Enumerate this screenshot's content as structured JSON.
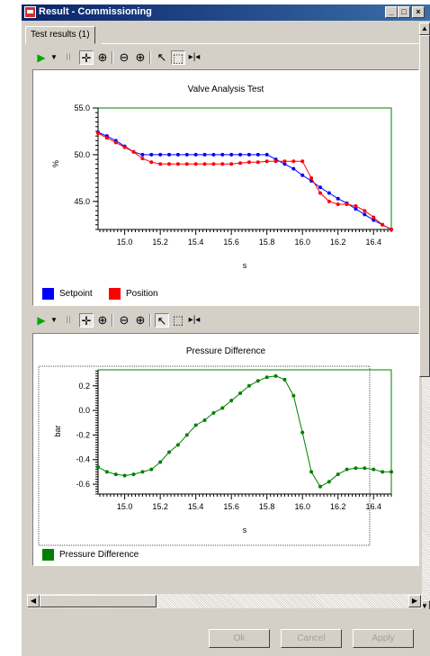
{
  "window": {
    "title": "Result - Commissioning"
  },
  "tabs": [
    {
      "label": "Test results (1)"
    }
  ],
  "toolbar_icons": [
    "play-icon",
    "dropdown-arrow-icon",
    "pause-icon",
    "pan-icon",
    "zoom-area-icon",
    "zoom-out-icon",
    "zoom-in-icon",
    "pointer-icon",
    "select-rect-icon",
    "fit-icon"
  ],
  "buttons": {
    "ok": "Ok",
    "cancel": "Cancel",
    "apply": "Apply"
  },
  "colors": {
    "setpoint": "#0000ff",
    "position": "#ff0000",
    "pressure": "#008000",
    "plot_border": "#008000"
  },
  "chart_data": [
    {
      "type": "line",
      "title": "Valve Analysis Test",
      "xlabel": "s",
      "ylabel": "%",
      "xlim": [
        14.85,
        16.5
      ],
      "ylim": [
        42.0,
        55.0
      ],
      "xticks": [
        "15.0",
        "15.2",
        "15.4",
        "15.6",
        "15.8",
        "16.0",
        "16.2",
        "16.4"
      ],
      "yticks": [
        "55.0",
        "50.0",
        "45.0"
      ],
      "grid": false,
      "legend": "bottom-left",
      "series": [
        {
          "name": "Setpoint",
          "color": "#0000ff",
          "x": [
            14.85,
            14.9,
            14.95,
            15.0,
            15.05,
            15.1,
            15.15,
            15.2,
            15.25,
            15.3,
            15.35,
            15.4,
            15.45,
            15.5,
            15.55,
            15.6,
            15.65,
            15.7,
            15.75,
            15.8,
            15.85,
            15.9,
            15.95,
            16.0,
            16.05,
            16.1,
            16.15,
            16.2,
            16.25,
            16.3,
            16.35,
            16.4,
            16.45,
            16.5
          ],
          "y": [
            52.4,
            52.0,
            51.5,
            50.9,
            50.3,
            50.0,
            50.0,
            50.0,
            50.0,
            50.0,
            50.0,
            50.0,
            50.0,
            50.0,
            50.0,
            50.0,
            50.0,
            50.0,
            50.0,
            50.0,
            49.5,
            49.0,
            48.5,
            47.8,
            47.2,
            46.5,
            45.9,
            45.3,
            44.8,
            44.2,
            43.6,
            43.0,
            42.5,
            42.0
          ]
        },
        {
          "name": "Position",
          "color": "#ff0000",
          "x": [
            14.85,
            14.9,
            14.95,
            15.0,
            15.05,
            15.1,
            15.15,
            15.2,
            15.25,
            15.3,
            15.35,
            15.4,
            15.45,
            15.5,
            15.55,
            15.6,
            15.65,
            15.7,
            15.75,
            15.8,
            15.85,
            15.9,
            15.95,
            16.0,
            16.05,
            16.1,
            16.15,
            16.2,
            16.25,
            16.3,
            16.35,
            16.4,
            16.45,
            16.5
          ],
          "y": [
            52.3,
            51.8,
            51.3,
            50.8,
            50.3,
            49.6,
            49.2,
            49.0,
            49.0,
            49.0,
            49.0,
            49.0,
            49.0,
            49.0,
            49.0,
            49.0,
            49.1,
            49.2,
            49.2,
            49.3,
            49.3,
            49.3,
            49.3,
            49.3,
            47.5,
            45.9,
            45.0,
            44.7,
            44.7,
            44.5,
            44.0,
            43.3,
            42.5,
            42.0
          ]
        }
      ]
    },
    {
      "type": "line",
      "title": "Pressure Difference",
      "xlabel": "s",
      "ylabel": "bar",
      "xlim": [
        14.85,
        16.5
      ],
      "ylim": [
        -0.68,
        0.33
      ],
      "xticks": [
        "15.0",
        "15.2",
        "15.4",
        "15.6",
        "15.8",
        "16.0",
        "16.2",
        "16.4"
      ],
      "yticks": [
        "0.2",
        "0.0",
        "-0.2",
        "-0.4",
        "-0.6"
      ],
      "grid": false,
      "legend": "bottom-left",
      "series": [
        {
          "name": "Pressure Difference",
          "color": "#008000",
          "x": [
            14.85,
            14.9,
            14.95,
            15.0,
            15.05,
            15.1,
            15.15,
            15.2,
            15.25,
            15.3,
            15.35,
            15.4,
            15.45,
            15.5,
            15.55,
            15.6,
            15.65,
            15.7,
            15.75,
            15.8,
            15.85,
            15.9,
            15.95,
            16.0,
            16.05,
            16.1,
            16.15,
            16.2,
            16.25,
            16.3,
            16.35,
            16.4,
            16.45,
            16.5
          ],
          "y": [
            -0.46,
            -0.5,
            -0.52,
            -0.53,
            -0.52,
            -0.5,
            -0.48,
            -0.42,
            -0.34,
            -0.28,
            -0.2,
            -0.12,
            -0.08,
            -0.02,
            0.02,
            0.08,
            0.14,
            0.2,
            0.24,
            0.27,
            0.28,
            0.25,
            0.12,
            -0.18,
            -0.5,
            -0.62,
            -0.58,
            -0.52,
            -0.48,
            -0.47,
            -0.47,
            -0.48,
            -0.5,
            -0.5
          ]
        }
      ]
    }
  ]
}
